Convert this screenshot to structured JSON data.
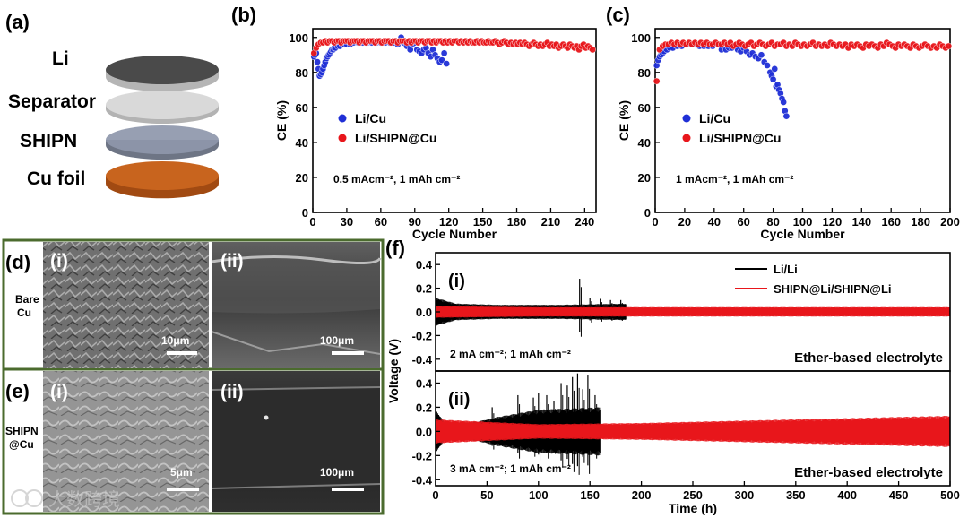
{
  "panels": {
    "a": "(a)",
    "b": "(b)",
    "c": "(c)",
    "d": "(d)",
    "e": "(e)",
    "f": "(f)"
  },
  "stack": {
    "layers": [
      "Li",
      "Separator",
      "SHIPN",
      "Cu foil"
    ],
    "colors": [
      "#4a4a4a",
      "#d9d9d9",
      "#8e97ab",
      "#c8641e"
    ]
  },
  "sem": {
    "row_d_label": [
      "Bare",
      "Cu"
    ],
    "row_e_label": [
      "SHIPN",
      "@Cu"
    ],
    "sub_i": "(i)",
    "sub_ii": "(ii)",
    "scale_d_i": "10μm",
    "scale_d_ii": "100μm",
    "scale_e_i": "5μm",
    "scale_e_ii": "100μm",
    "frame_color": "#4b6b2e"
  },
  "watermark": "大数跨境",
  "chart_data": [
    {
      "id": "b",
      "type": "scatter",
      "xlabel": "Cycle Number",
      "ylabel": "CE (%)",
      "xlim": [
        0,
        250
      ],
      "ylim": [
        0,
        105
      ],
      "xticks": [
        0,
        30,
        60,
        90,
        120,
        150,
        180,
        210,
        240
      ],
      "yticks": [
        0,
        20,
        40,
        60,
        80,
        100
      ],
      "annotation": "0.5 mAcm⁻²,  1 mAh cm⁻²",
      "legend": [
        "Li/Cu",
        "Li/SHIPN@Cu"
      ],
      "series": [
        {
          "name": "Li/Cu",
          "color": "#1f2fd6",
          "x": [
            1,
            2,
            3,
            4,
            5,
            6,
            7,
            8,
            9,
            10,
            11,
            12,
            13,
            14,
            15,
            16,
            17,
            18,
            19,
            20,
            22,
            24,
            26,
            28,
            30,
            33,
            36,
            40,
            44,
            48,
            52,
            56,
            60,
            64,
            68,
            72,
            75,
            78,
            80,
            83,
            86,
            88,
            90,
            92,
            94,
            96,
            98,
            100,
            102,
            104,
            106,
            108,
            110,
            112,
            114,
            116,
            118
          ],
          "y": [
            89,
            90,
            91,
            86,
            82,
            78,
            79,
            80,
            82,
            84,
            86,
            88,
            89,
            90,
            91,
            92,
            93,
            93,
            94,
            94,
            95,
            95,
            96,
            96,
            96,
            96,
            97,
            97,
            97,
            97,
            97,
            97,
            97,
            97,
            97,
            97,
            96,
            100,
            97,
            95,
            93,
            96,
            97,
            93,
            92,
            91,
            93,
            94,
            91,
            89,
            93,
            90,
            88,
            86,
            87,
            91,
            85
          ]
        },
        {
          "name": "Li/SHIPN@Cu",
          "color": "#e8161b",
          "x": [
            1,
            3,
            5,
            7,
            9,
            11,
            13,
            15,
            17,
            19,
            21,
            23,
            25,
            27,
            29,
            31,
            33,
            35,
            37,
            39,
            41,
            43,
            45,
            47,
            49,
            51,
            53,
            55,
            57,
            59,
            61,
            63,
            65,
            67,
            69,
            71,
            73,
            75,
            77,
            79,
            81,
            83,
            85,
            87,
            89,
            91,
            93,
            95,
            97,
            99,
            101,
            103,
            105,
            107,
            109,
            111,
            113,
            115,
            117,
            119,
            121,
            123,
            125,
            127,
            129,
            131,
            133,
            135,
            137,
            139,
            141,
            143,
            145,
            147,
            149,
            151,
            153,
            155,
            157,
            159,
            161,
            163,
            165,
            167,
            169,
            171,
            173,
            175,
            177,
            179,
            181,
            183,
            185,
            187,
            189,
            191,
            193,
            195,
            197,
            199,
            201,
            203,
            205,
            207,
            209,
            211,
            213,
            215,
            217,
            219,
            221,
            223,
            225,
            227,
            229,
            231,
            233,
            235,
            237,
            239,
            241,
            243,
            245,
            247
          ],
          "y": [
            91,
            94,
            96,
            97,
            97,
            98,
            97,
            98,
            98,
            97,
            98,
            98,
            97,
            98,
            98,
            98,
            97,
            98,
            98,
            98,
            97,
            98,
            98,
            97,
            98,
            98,
            98,
            97,
            98,
            98,
            97,
            98,
            98,
            98,
            97,
            98,
            98,
            97,
            98,
            98,
            98,
            97,
            98,
            97,
            98,
            98,
            97,
            98,
            98,
            97,
            98,
            98,
            97,
            98,
            97,
            98,
            98,
            97,
            98,
            97,
            98,
            97,
            98,
            98,
            97,
            98,
            97,
            98,
            97,
            98,
            97,
            97,
            98,
            97,
            98,
            97,
            97,
            98,
            97,
            97,
            98,
            97,
            96,
            97,
            98,
            97,
            96,
            97,
            96,
            97,
            96,
            97,
            96,
            97,
            96,
            95,
            96,
            97,
            96,
            95,
            96,
            95,
            96,
            97,
            95,
            96,
            95,
            96,
            94,
            95,
            96,
            95,
            94,
            96,
            95,
            94,
            95,
            93,
            95,
            96,
            94,
            95,
            94,
            93
          ]
        }
      ]
    },
    {
      "id": "c",
      "type": "scatter",
      "xlabel": "Cycle Number",
      "ylabel": "CE (%)",
      "xlim": [
        0,
        200
      ],
      "ylim": [
        0,
        105
      ],
      "xticks": [
        0,
        20,
        40,
        60,
        80,
        100,
        120,
        140,
        160,
        180,
        200
      ],
      "yticks": [
        0,
        20,
        40,
        60,
        80,
        100
      ],
      "annotation": "1 mAcm⁻²,  1 mAh cm⁻²",
      "legend": [
        "Li/Cu",
        "Li/SHIPN@Cu"
      ],
      "series": [
        {
          "name": "Li/Cu",
          "color": "#1f2fd6",
          "x": [
            1,
            2,
            3,
            4,
            5,
            6,
            8,
            10,
            12,
            15,
            18,
            21,
            24,
            27,
            30,
            33,
            36,
            39,
            42,
            45,
            48,
            50,
            52,
            54,
            56,
            58,
            60,
            62,
            64,
            66,
            68,
            70,
            72,
            74,
            76,
            78,
            79,
            80,
            81,
            82,
            83,
            84,
            85,
            86,
            87,
            88,
            89
          ],
          "y": [
            84,
            87,
            89,
            90,
            91,
            92,
            93,
            94,
            94,
            95,
            95,
            96,
            96,
            96,
            95,
            95,
            95,
            95,
            96,
            93,
            93,
            94,
            94,
            95,
            93,
            92,
            94,
            92,
            90,
            91,
            89,
            88,
            90,
            86,
            84,
            80,
            78,
            76,
            82,
            72,
            73,
            70,
            68,
            65,
            63,
            58,
            55
          ]
        },
        {
          "name": "Li/SHIPN@Cu",
          "color": "#e8161b",
          "x": [
            1,
            3,
            5,
            7,
            9,
            11,
            13,
            15,
            17,
            19,
            21,
            23,
            25,
            27,
            29,
            31,
            33,
            35,
            37,
            39,
            41,
            43,
            45,
            47,
            49,
            51,
            53,
            55,
            57,
            59,
            61,
            63,
            65,
            67,
            69,
            71,
            73,
            75,
            77,
            79,
            81,
            83,
            85,
            87,
            89,
            91,
            93,
            95,
            97,
            99,
            101,
            103,
            105,
            107,
            109,
            111,
            113,
            115,
            117,
            119,
            121,
            123,
            125,
            127,
            129,
            131,
            133,
            135,
            137,
            139,
            141,
            143,
            145,
            147,
            149,
            151,
            153,
            155,
            157,
            159,
            161,
            163,
            165,
            167,
            169,
            171,
            173,
            175,
            177,
            179,
            181,
            183,
            185,
            187,
            189,
            191,
            193,
            195,
            197,
            199
          ],
          "y": [
            75,
            93,
            95,
            96,
            96,
            97,
            96,
            97,
            96,
            97,
            96,
            97,
            96,
            97,
            96,
            97,
            96,
            97,
            96,
            96,
            97,
            96,
            96,
            97,
            96,
            97,
            95,
            96,
            97,
            96,
            95,
            96,
            97,
            95,
            96,
            97,
            96,
            95,
            96,
            97,
            95,
            96,
            96,
            97,
            95,
            96,
            95,
            97,
            96,
            95,
            96,
            95,
            96,
            97,
            95,
            96,
            95,
            96,
            95,
            97,
            96,
            95,
            96,
            95,
            96,
            94,
            96,
            95,
            96,
            95,
            94,
            96,
            95,
            96,
            95,
            94,
            96,
            95,
            97,
            96,
            95,
            94,
            96,
            95,
            96,
            95,
            94,
            96,
            95,
            94,
            95,
            96,
            95,
            94,
            95,
            94,
            96,
            95,
            94,
            95
          ]
        }
      ]
    },
    {
      "id": "f",
      "type": "line",
      "xlabel": "Time (h)",
      "ylabel": "Voltage (V)",
      "xlim": [
        0,
        500
      ],
      "xticks": [
        0,
        50,
        100,
        150,
        200,
        250,
        300,
        350,
        400,
        450,
        500
      ],
      "legend": [
        "Li/Li",
        "SHIPN@Li/SHIPN@Li"
      ],
      "subplots": [
        {
          "label": "(i)",
          "ylim": [
            -0.5,
            0.5
          ],
          "yticks": [
            -0.4,
            -0.2,
            0.0,
            0.2,
            0.4
          ],
          "condition": "2 mA cm⁻²; 1 mAh cm⁻²",
          "electrolyte": "Ether-based electrolyte",
          "series": [
            {
              "name": "Li/Li",
              "color": "#000000",
              "end": 185,
              "amp": [
                [
                  0,
                  0.12
                ],
                [
                  20,
                  0.07
                ],
                [
                  60,
                  0.06
                ],
                [
                  120,
                  0.06
                ],
                [
                  185,
                  0.07
                ]
              ],
              "spikes": [
                [
                  140,
                  0.28
                ],
                [
                  150,
                  0.12
                ],
                [
                  160,
                  0.11
                ],
                [
                  170,
                  0.1
                ],
                [
                  180,
                  0.1
                ]
              ]
            },
            {
              "name": "SHIPN@Li/SHIPN@Li",
              "color": "#e8161b",
              "end": 500,
              "amp": [
                [
                  0,
                  0.05
                ],
                [
                  100,
                  0.04
                ],
                [
                  300,
                  0.04
                ],
                [
                  500,
                  0.04
                ]
              ]
            }
          ]
        },
        {
          "label": "(ii)",
          "ylim": [
            -0.45,
            0.5
          ],
          "yticks": [
            -0.4,
            -0.2,
            0.0,
            0.2,
            0.4
          ],
          "condition": "3 mA cm⁻²; 1 mAh cm⁻²",
          "electrolyte": "Ether-based electrolyte",
          "series": [
            {
              "name": "Li/Li",
              "color": "#000000",
              "end": 160,
              "amp": [
                [
                  0,
                  0.18
                ],
                [
                  10,
                  0.06
                ],
                [
                  40,
                  0.08
                ],
                [
                  60,
                  0.12
                ],
                [
                  100,
                  0.18
                ],
                [
                  160,
                  0.2
                ]
              ],
              "spikes": [
                [
                  55,
                  0.2
                ],
                [
                  80,
                  0.3
                ],
                [
                  95,
                  0.28
                ],
                [
                  100,
                  0.32
                ],
                [
                  108,
                  0.3
                ],
                [
                  115,
                  0.25
                ],
                [
                  122,
                  0.4
                ],
                [
                  128,
                  0.38
                ],
                [
                  133,
                  0.45
                ],
                [
                  138,
                  0.48
                ],
                [
                  143,
                  0.35
                ],
                [
                  148,
                  0.47
                ],
                [
                  155,
                  0.3
                ]
              ]
            },
            {
              "name": "SHIPN@Li/SHIPN@Li",
              "color": "#e8161b",
              "end": 500,
              "amp": [
                [
                  0,
                  0.1
                ],
                [
                  100,
                  0.06
                ],
                [
                  200,
                  0.07
                ],
                [
                  350,
                  0.1
                ],
                [
                  500,
                  0.13
                ]
              ]
            }
          ]
        }
      ]
    }
  ]
}
